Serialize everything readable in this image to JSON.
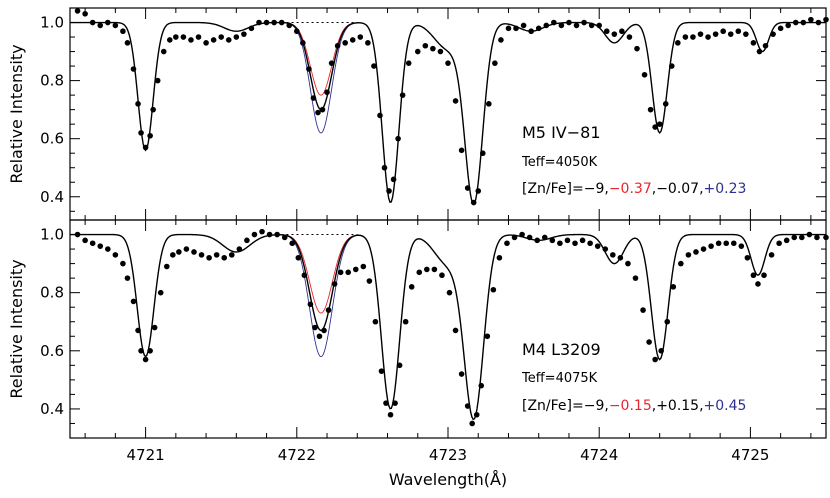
{
  "chart_data": [
    {
      "type": "line",
      "panel": "top",
      "xlabel": "",
      "ylabel": "Relative Intensity",
      "xlim": [
        4720.5,
        4725.5
      ],
      "ylim": [
        0.32,
        1.05
      ],
      "x_ticks": [
        4721,
        4722,
        4723,
        4724,
        4725
      ],
      "x_tick_labels": [
        "",
        "",
        "",
        "",
        ""
      ],
      "y_ticks": [
        0.4,
        0.6,
        0.8,
        1.0
      ],
      "y_tick_labels": [
        "0.4",
        "0.6",
        "0.8",
        "1.0"
      ],
      "annotations": {
        "star": "M5 IV−81",
        "teff": "Teff=4050K",
        "abund_prefix": "[Zn/Fe]=−9,",
        "abund_red": "−0.37",
        "abund_sep1": ",",
        "abund_black": "−0.07",
        "abund_sep2": ",",
        "abund_blue": "+0.23"
      },
      "colors": {
        "observed": "#000000",
        "model": "#000000",
        "red": "#e8262d",
        "blue": "#2e3192"
      },
      "lines": [
        {
          "center": 4721.0,
          "depth": 0.44,
          "width": 0.05
        },
        {
          "center": 4721.6,
          "depth": 0.03,
          "width": 0.08
        },
        {
          "center": 4722.16,
          "zn": true,
          "width": 0.07
        },
        {
          "center": 4722.62,
          "depth": 0.62,
          "width": 0.055
        },
        {
          "center": 4723.0,
          "depth": 0.09,
          "width": 0.09
        },
        {
          "center": 4723.17,
          "depth": 0.62,
          "width": 0.06
        },
        {
          "center": 4723.55,
          "depth": 0.03,
          "width": 0.08
        },
        {
          "center": 4724.1,
          "depth": 0.07,
          "width": 0.06
        },
        {
          "center": 4724.4,
          "depth": 0.38,
          "width": 0.05
        },
        {
          "center": 4725.08,
          "depth": 0.1,
          "width": 0.04
        }
      ],
      "zn_depths": {
        "none": 0.0,
        "red": 0.25,
        "black": 0.3,
        "blue": 0.38
      },
      "observed_points": [
        [
          4720.55,
          1.04
        ],
        [
          4720.6,
          1.03
        ],
        [
          4720.65,
          1.0
        ],
        [
          4720.7,
          0.99
        ],
        [
          4720.75,
          1.0
        ],
        [
          4720.8,
          0.99
        ],
        [
          4720.85,
          0.97
        ],
        [
          4720.88,
          0.93
        ],
        [
          4720.92,
          0.84
        ],
        [
          4720.95,
          0.72
        ],
        [
          4720.97,
          0.62
        ],
        [
          4721.0,
          0.57
        ],
        [
          4721.03,
          0.61
        ],
        [
          4721.05,
          0.7
        ],
        [
          4721.08,
          0.8
        ],
        [
          4721.12,
          0.9
        ],
        [
          4721.16,
          0.94
        ],
        [
          4721.2,
          0.95
        ],
        [
          4721.25,
          0.95
        ],
        [
          4721.3,
          0.94
        ],
        [
          4721.35,
          0.95
        ],
        [
          4721.4,
          0.93
        ],
        [
          4721.45,
          0.94
        ],
        [
          4721.5,
          0.95
        ],
        [
          4721.55,
          0.94
        ],
        [
          4721.6,
          0.95
        ],
        [
          4721.65,
          0.96
        ],
        [
          4721.7,
          0.98
        ],
        [
          4721.75,
          1.0
        ],
        [
          4721.8,
          1.0
        ],
        [
          4721.85,
          1.0
        ],
        [
          4721.9,
          1.0
        ],
        [
          4721.95,
          0.99
        ],
        [
          4722.0,
          0.97
        ],
        [
          4722.04,
          0.93
        ],
        [
          4722.08,
          0.84
        ],
        [
          4722.11,
          0.74
        ],
        [
          4722.14,
          0.69
        ],
        [
          4722.17,
          0.7
        ],
        [
          4722.2,
          0.76
        ],
        [
          4722.23,
          0.86
        ],
        [
          4722.27,
          0.92
        ],
        [
          4722.32,
          0.93
        ],
        [
          4722.37,
          0.94
        ],
        [
          4722.42,
          0.95
        ],
        [
          4722.47,
          0.93
        ],
        [
          4722.51,
          0.85
        ],
        [
          4722.55,
          0.68
        ],
        [
          4722.58,
          0.5
        ],
        [
          4722.61,
          0.42
        ],
        [
          4722.64,
          0.46
        ],
        [
          4722.67,
          0.6
        ],
        [
          4722.7,
          0.75
        ],
        [
          4722.74,
          0.86
        ],
        [
          4722.8,
          0.9
        ],
        [
          4722.85,
          0.92
        ],
        [
          4722.9,
          0.91
        ],
        [
          4722.95,
          0.9
        ],
        [
          4723.0,
          0.86
        ],
        [
          4723.05,
          0.73
        ],
        [
          4723.09,
          0.56
        ],
        [
          4723.13,
          0.43
        ],
        [
          4723.17,
          0.38
        ],
        [
          4723.2,
          0.42
        ],
        [
          4723.23,
          0.55
        ],
        [
          4723.27,
          0.72
        ],
        [
          4723.31,
          0.86
        ],
        [
          4723.35,
          0.94
        ],
        [
          4723.4,
          0.98
        ],
        [
          4723.45,
          0.98
        ],
        [
          4723.5,
          0.99
        ],
        [
          4723.55,
          0.97
        ],
        [
          4723.6,
          0.98
        ],
        [
          4723.65,
          0.99
        ],
        [
          4723.7,
          1.0
        ],
        [
          4723.75,
          0.99
        ],
        [
          4723.8,
          1.0
        ],
        [
          4723.85,
          0.99
        ],
        [
          4723.9,
          1.0
        ],
        [
          4723.95,
          0.99
        ],
        [
          4724.0,
          0.99
        ],
        [
          4724.05,
          0.97
        ],
        [
          4724.1,
          0.96
        ],
        [
          4724.15,
          0.97
        ],
        [
          4724.2,
          0.95
        ],
        [
          4724.25,
          0.91
        ],
        [
          4724.3,
          0.82
        ],
        [
          4724.34,
          0.7
        ],
        [
          4724.37,
          0.64
        ],
        [
          4724.4,
          0.65
        ],
        [
          4724.44,
          0.72
        ],
        [
          4724.48,
          0.85
        ],
        [
          4724.52,
          0.93
        ],
        [
          4724.57,
          0.95
        ],
        [
          4724.62,
          0.95
        ],
        [
          4724.67,
          0.96
        ],
        [
          4724.72,
          0.95
        ],
        [
          4724.77,
          0.96
        ],
        [
          4724.82,
          0.97
        ],
        [
          4724.87,
          0.96
        ],
        [
          4724.92,
          0.97
        ],
        [
          4724.97,
          0.96
        ],
        [
          4725.02,
          0.93
        ],
        [
          4725.06,
          0.9
        ],
        [
          4725.1,
          0.92
        ],
        [
          4725.15,
          0.96
        ],
        [
          4725.2,
          0.98
        ],
        [
          4725.25,
          0.99
        ],
        [
          4725.3,
          1.0
        ],
        [
          4725.35,
          1.0
        ],
        [
          4725.4,
          1.01
        ],
        [
          4725.45,
          1.0
        ],
        [
          4725.5,
          1.01
        ]
      ]
    },
    {
      "type": "line",
      "panel": "bottom",
      "xlabel": "Wavelength(Å)",
      "ylabel": "Relative Intensity",
      "xlim": [
        4720.5,
        4725.5
      ],
      "ylim": [
        0.3,
        1.05
      ],
      "x_ticks": [
        4721,
        4722,
        4723,
        4724,
        4725
      ],
      "x_tick_labels": [
        "4721",
        "4722",
        "4723",
        "4724",
        "4725"
      ],
      "y_ticks": [
        0.4,
        0.6,
        0.8,
        1.0
      ],
      "y_tick_labels": [
        "0.4",
        "0.6",
        "0.8",
        "1.0"
      ],
      "annotations": {
        "star": "M4 L3209",
        "teff": "Teff=4075K",
        "abund_prefix": "[Zn/Fe]=−9,",
        "abund_red": "−0.15",
        "abund_sep1": ",",
        "abund_black": "+0.15",
        "abund_sep2": ",",
        "abund_blue": "+0.45"
      },
      "colors": {
        "observed": "#000000",
        "model": "#000000",
        "red": "#e8262d",
        "blue": "#2e3192"
      },
      "lines": [
        {
          "center": 4721.0,
          "depth": 0.42,
          "width": 0.055
        },
        {
          "center": 4721.6,
          "depth": 0.06,
          "width": 0.09
        },
        {
          "center": 4722.16,
          "zn": true,
          "width": 0.075
        },
        {
          "center": 4722.62,
          "depth": 0.6,
          "width": 0.06
        },
        {
          "center": 4723.0,
          "depth": 0.1,
          "width": 0.09
        },
        {
          "center": 4723.17,
          "depth": 0.63,
          "width": 0.065
        },
        {
          "center": 4723.6,
          "depth": 0.02,
          "width": 0.08
        },
        {
          "center": 4724.1,
          "depth": 0.1,
          "width": 0.06
        },
        {
          "center": 4724.4,
          "depth": 0.43,
          "width": 0.055
        },
        {
          "center": 4725.05,
          "depth": 0.14,
          "width": 0.045
        }
      ],
      "zn_depths": {
        "none": 0.0,
        "red": 0.27,
        "black": 0.33,
        "blue": 0.42
      },
      "observed_points": [
        [
          4720.55,
          1.0
        ],
        [
          4720.6,
          0.98
        ],
        [
          4720.65,
          0.97
        ],
        [
          4720.7,
          0.96
        ],
        [
          4720.75,
          0.95
        ],
        [
          4720.8,
          0.93
        ],
        [
          4720.85,
          0.9
        ],
        [
          4720.88,
          0.85
        ],
        [
          4720.92,
          0.77
        ],
        [
          4720.95,
          0.67
        ],
        [
          4720.97,
          0.6
        ],
        [
          4721.0,
          0.57
        ],
        [
          4721.03,
          0.6
        ],
        [
          4721.06,
          0.68
        ],
        [
          4721.1,
          0.8
        ],
        [
          4721.14,
          0.89
        ],
        [
          4721.18,
          0.93
        ],
        [
          4721.22,
          0.94
        ],
        [
          4721.27,
          0.95
        ],
        [
          4721.32,
          0.94
        ],
        [
          4721.37,
          0.93
        ],
        [
          4721.42,
          0.92
        ],
        [
          4721.47,
          0.93
        ],
        [
          4721.52,
          0.92
        ],
        [
          4721.57,
          0.93
        ],
        [
          4721.62,
          0.95
        ],
        [
          4721.67,
          0.98
        ],
        [
          4721.72,
          1.0
        ],
        [
          4721.77,
          1.01
        ],
        [
          4721.82,
          1.0
        ],
        [
          4721.87,
          1.0
        ],
        [
          4721.92,
          0.99
        ],
        [
          4721.97,
          0.97
        ],
        [
          4722.01,
          0.92
        ],
        [
          4722.05,
          0.86
        ],
        [
          4722.09,
          0.76
        ],
        [
          4722.12,
          0.68
        ],
        [
          4722.15,
          0.65
        ],
        [
          4722.18,
          0.67
        ],
        [
          4722.21,
          0.74
        ],
        [
          4722.25,
          0.83
        ],
        [
          4722.29,
          0.87
        ],
        [
          4722.34,
          0.87
        ],
        [
          4722.39,
          0.88
        ],
        [
          4722.44,
          0.89
        ],
        [
          4722.48,
          0.84
        ],
        [
          4722.52,
          0.7
        ],
        [
          4722.56,
          0.53
        ],
        [
          4722.59,
          0.42
        ],
        [
          4722.62,
          0.38
        ],
        [
          4722.65,
          0.42
        ],
        [
          4722.68,
          0.55
        ],
        [
          4722.72,
          0.7
        ],
        [
          4722.76,
          0.82
        ],
        [
          4722.81,
          0.87
        ],
        [
          4722.86,
          0.88
        ],
        [
          4722.91,
          0.88
        ],
        [
          4722.96,
          0.86
        ],
        [
          4723.01,
          0.8
        ],
        [
          4723.05,
          0.67
        ],
        [
          4723.09,
          0.52
        ],
        [
          4723.13,
          0.41
        ],
        [
          4723.16,
          0.35
        ],
        [
          4723.19,
          0.38
        ],
        [
          4723.22,
          0.48
        ],
        [
          4723.26,
          0.65
        ],
        [
          4723.3,
          0.81
        ],
        [
          4723.34,
          0.92
        ],
        [
          4723.39,
          0.97
        ],
        [
          4723.44,
          0.99
        ],
        [
          4723.49,
          1.0
        ],
        [
          4723.54,
          0.99
        ],
        [
          4723.59,
          0.98
        ],
        [
          4723.64,
          0.99
        ],
        [
          4723.69,
          0.98
        ],
        [
          4723.74,
          0.97
        ],
        [
          4723.79,
          0.98
        ],
        [
          4723.84,
          0.97
        ],
        [
          4723.89,
          0.98
        ],
        [
          4723.94,
          0.97
        ],
        [
          4723.99,
          0.96
        ],
        [
          4724.04,
          0.95
        ],
        [
          4724.09,
          0.93
        ],
        [
          4724.14,
          0.92
        ],
        [
          4724.19,
          0.9
        ],
        [
          4724.24,
          0.85
        ],
        [
          4724.29,
          0.74
        ],
        [
          4724.33,
          0.63
        ],
        [
          4724.37,
          0.57
        ],
        [
          4724.41,
          0.6
        ],
        [
          4724.45,
          0.7
        ],
        [
          4724.49,
          0.82
        ],
        [
          4724.54,
          0.9
        ],
        [
          4724.59,
          0.93
        ],
        [
          4724.64,
          0.94
        ],
        [
          4724.69,
          0.95
        ],
        [
          4724.74,
          0.96
        ],
        [
          4724.79,
          0.97
        ],
        [
          4724.84,
          0.97
        ],
        [
          4724.89,
          0.97
        ],
        [
          4724.94,
          0.96
        ],
        [
          4724.98,
          0.92
        ],
        [
          4725.02,
          0.86
        ],
        [
          4725.05,
          0.83
        ],
        [
          4725.09,
          0.86
        ],
        [
          4725.14,
          0.93
        ],
        [
          4725.19,
          0.97
        ],
        [
          4725.24,
          0.98
        ],
        [
          4725.29,
          0.99
        ],
        [
          4725.34,
          0.99
        ],
        [
          4725.39,
          1.0
        ],
        [
          4725.44,
          0.99
        ],
        [
          4725.5,
          0.99
        ]
      ]
    }
  ]
}
